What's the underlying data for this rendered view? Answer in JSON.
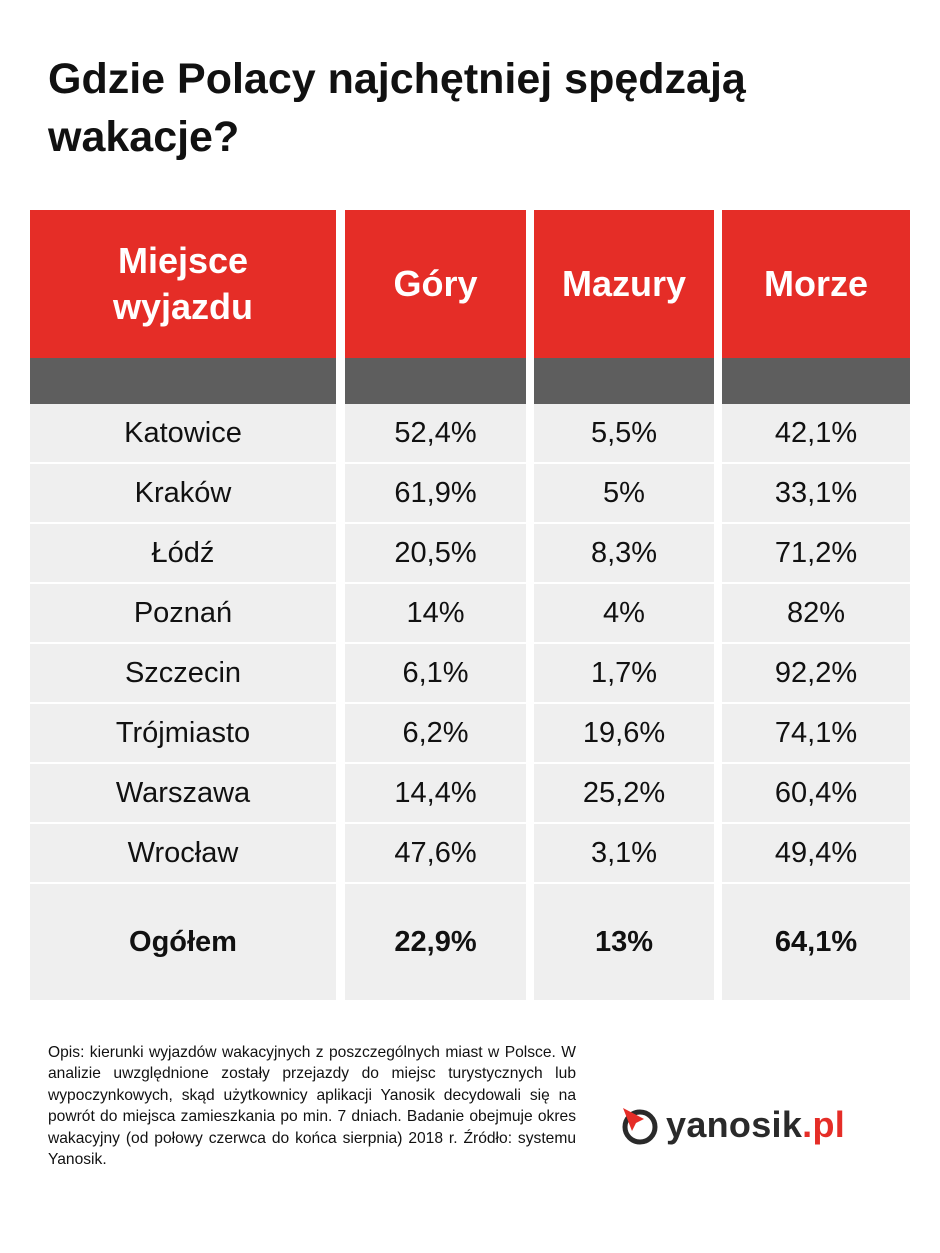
{
  "title": "Gdzie Polacy najchętniej spędzają wakacje?",
  "table": {
    "columns": [
      "Miejsce wyjazdu",
      "Góry",
      "Mazury",
      "Morze"
    ],
    "rows": [
      {
        "city": "Katowice",
        "gory": "52,4%",
        "mazury": "5,5%",
        "morze": "42,1%"
      },
      {
        "city": "Kraków",
        "gory": "61,9%",
        "mazury": "5%",
        "morze": "33,1%"
      },
      {
        "city": "Łódź",
        "gory": "20,5%",
        "mazury": "8,3%",
        "morze": "71,2%"
      },
      {
        "city": "Poznań",
        "gory": "14%",
        "mazury": "4%",
        "morze": "82%"
      },
      {
        "city": "Szczecin",
        "gory": "6,1%",
        "mazury": "1,7%",
        "morze": "92,2%"
      },
      {
        "city": "Trójmiasto",
        "gory": "6,2%",
        "mazury": "19,6%",
        "morze": "74,1%"
      },
      {
        "city": "Warszawa",
        "gory": "14,4%",
        "mazury": "25,2%",
        "morze": "60,4%"
      },
      {
        "city": "Wrocław",
        "gory": "47,6%",
        "mazury": "3,1%",
        "morze": "49,4%"
      }
    ],
    "total": {
      "city": "Ogółem",
      "gory": "22,9%",
      "mazury": "13%",
      "morze": "64,1%"
    }
  },
  "note": "Opis: kierunki wyjazdów wakacyjnych z poszczególnych miast w Polsce. W analizie uwzględnione zostały przejazdy do miejsc turystycznych lub wypoczynkowych, skąd użytkownicy aplikacji Yanosik decydowali się na powrót do miejsca zamieszkania po min. 7 dniach. Badanie obejmuje okres wakacyjny (od połowy czerwca do końca sierpnia) 2018 r. Źródło: systemu Yanosik.",
  "logo": {
    "name": "yanosik",
    "suffix": ".pl",
    "icon": "yanosik-logo-icon"
  },
  "colors": {
    "header": "#e52d27",
    "subheader": "#5e5e5e",
    "body": "#efefef",
    "text": "#111111"
  }
}
